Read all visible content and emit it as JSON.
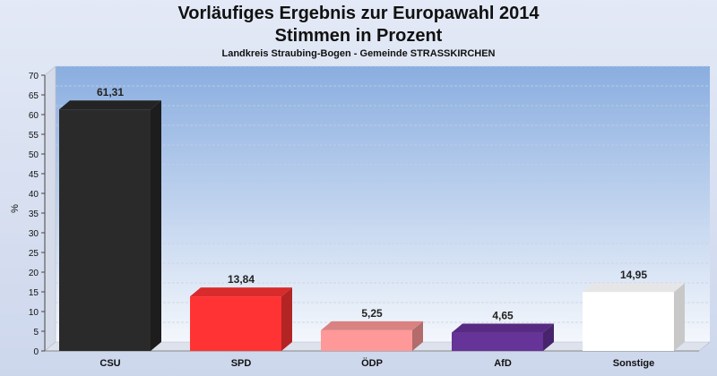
{
  "chart_data": {
    "type": "bar",
    "title": "Vorläufiges Ergebnis zur Europawahl 2014",
    "title2": "Stimmen in Prozent",
    "subtitle": "Landkreis Straubing-Bogen - Gemeinde STRASSKIRCHEN",
    "ylabel": "%",
    "xlabel": "",
    "ylim": [
      0,
      70
    ],
    "yticks": [
      "0",
      "5",
      "10",
      "15",
      "20",
      "25",
      "30",
      "35",
      "40",
      "45",
      "50",
      "55",
      "60",
      "65",
      "70"
    ],
    "categories": [
      "CSU",
      "SPD",
      "ÖDP",
      "AfD",
      "Sonstige"
    ],
    "values": [
      61.31,
      13.84,
      5.25,
      4.65,
      14.95
    ],
    "value_labels": [
      "61,31",
      "13,84",
      "5,25",
      "4,65",
      "14,95"
    ],
    "colors": [
      "#2a2a2a",
      "#ff3333",
      "#ff9999",
      "#663399",
      "#ffffff"
    ],
    "grid": true,
    "legend": "none"
  }
}
